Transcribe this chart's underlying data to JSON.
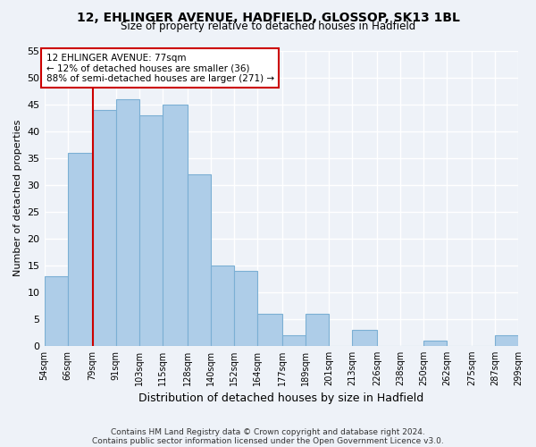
{
  "title_line1": "12, EHLINGER AVENUE, HADFIELD, GLOSSOP, SK13 1BL",
  "title_line2": "Size of property relative to detached houses in Hadfield",
  "xlabel": "Distribution of detached houses by size in Hadfield",
  "ylabel": "Number of detached properties",
  "bar_edges": [
    54,
    66,
    79,
    91,
    103,
    115,
    128,
    140,
    152,
    164,
    177,
    189,
    201,
    213,
    226,
    238,
    250,
    262,
    275,
    287,
    299
  ],
  "bar_heights": [
    13,
    36,
    44,
    46,
    43,
    45,
    32,
    15,
    14,
    6,
    2,
    6,
    0,
    3,
    0,
    0,
    1,
    0,
    0,
    2
  ],
  "bar_color": "#aecde8",
  "bar_edge_color": "#7bafd4",
  "reference_line_x": 79,
  "reference_line_color": "#cc0000",
  "annotation_text": "12 EHLINGER AVENUE: 77sqm\n← 12% of detached houses are smaller (36)\n88% of semi-detached houses are larger (271) →",
  "annotation_box_color": "white",
  "annotation_box_edge_color": "#cc0000",
  "ylim": [
    0,
    55
  ],
  "yticks": [
    0,
    5,
    10,
    15,
    20,
    25,
    30,
    35,
    40,
    45,
    50,
    55
  ],
  "tick_labels": [
    "54sqm",
    "66sqm",
    "79sqm",
    "91sqm",
    "103sqm",
    "115sqm",
    "128sqm",
    "140sqm",
    "152sqm",
    "164sqm",
    "177sqm",
    "189sqm",
    "201sqm",
    "213sqm",
    "226sqm",
    "238sqm",
    "250sqm",
    "262sqm",
    "275sqm",
    "287sqm",
    "299sqm"
  ],
  "footer_line1": "Contains HM Land Registry data © Crown copyright and database right 2024.",
  "footer_line2": "Contains public sector information licensed under the Open Government Licence v3.0.",
  "background_color": "#eef2f8",
  "grid_color": "white",
  "annotation_fontsize": 7.5,
  "title1_fontsize": 10,
  "title2_fontsize": 8.5,
  "xlabel_fontsize": 9,
  "ylabel_fontsize": 8,
  "xtick_fontsize": 7,
  "ytick_fontsize": 8,
  "footer_fontsize": 6.5
}
